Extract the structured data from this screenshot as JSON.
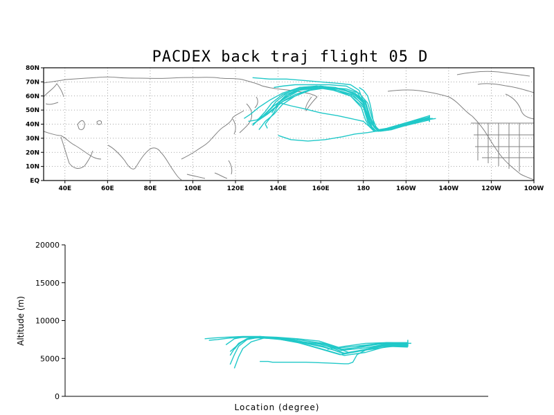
{
  "chart_data": [
    {
      "type": "scatter",
      "subtype": "trajectory-map",
      "title": "PACDEX back traj flight 05 D",
      "x_ticks": [
        "40E",
        "60E",
        "80E",
        "100E",
        "120E",
        "140E",
        "160E",
        "180",
        "160W",
        "140W",
        "120W",
        "100W"
      ],
      "y_ticks": [
        "EQ",
        "10N",
        "20N",
        "30N",
        "40N",
        "50N",
        "60N",
        "70N",
        "80N"
      ],
      "xlim": [
        30,
        260
      ],
      "ylim": [
        0,
        80
      ],
      "grid": true,
      "colors": {
        "trajectory": "#20c8c8",
        "coast": "#808080"
      },
      "series": [
        {
          "lon": [
            211,
            200,
            190,
            186,
            184,
            182,
            180,
            174,
            168,
            160,
            152,
            146,
            141,
            138,
            136,
            134,
            135
          ],
          "lat": [
            44,
            40,
            36,
            35,
            37,
            42,
            52,
            60,
            64,
            66,
            65,
            62,
            56,
            48,
            44,
            40,
            37
          ]
        },
        {
          "lon": [
            211,
            202,
            192,
            187,
            185,
            183,
            181,
            176,
            170,
            162,
            154,
            148,
            142,
            138,
            134,
            132,
            131
          ],
          "lat": [
            45,
            41,
            37,
            35,
            38,
            44,
            54,
            61,
            65,
            66,
            64,
            60,
            54,
            47,
            42,
            38,
            36
          ]
        },
        {
          "lon": [
            211,
            200,
            191,
            186,
            184,
            182,
            180,
            175,
            168,
            160,
            150,
            143,
            137,
            133,
            130,
            128
          ],
          "lat": [
            43,
            39,
            36,
            35,
            37,
            43,
            53,
            61,
            64,
            66,
            64,
            58,
            52,
            46,
            42,
            39
          ]
        },
        {
          "lon": [
            211,
            201,
            192,
            187,
            185,
            183,
            181,
            176,
            169,
            160,
            151,
            144,
            138,
            134,
            130,
            126
          ],
          "lat": [
            44,
            40,
            36,
            35,
            38,
            44,
            55,
            62,
            65,
            67,
            65,
            60,
            53,
            47,
            43,
            42
          ]
        },
        {
          "lon": [
            211,
            200,
            191,
            187,
            185,
            183,
            181,
            176,
            170,
            162,
            154,
            148,
            143,
            139,
            135,
            131,
            128
          ],
          "lat": [
            46,
            41,
            37,
            36,
            39,
            46,
            56,
            62,
            65,
            66,
            64,
            61,
            57,
            52,
            47,
            43,
            40
          ]
        },
        {
          "lon": [
            211,
            201,
            193,
            188,
            186,
            184,
            182,
            178,
            172,
            164,
            155,
            148,
            142,
            137,
            133
          ],
          "lat": [
            44,
            40,
            36,
            35,
            38,
            45,
            55,
            62,
            65,
            66,
            64,
            60,
            56,
            50,
            45
          ]
        },
        {
          "lon": [
            211,
            200,
            191,
            186,
            184,
            182,
            180,
            176,
            168,
            160,
            150,
            142,
            136,
            131,
            127,
            124
          ],
          "lat": [
            45,
            40,
            36,
            35,
            38,
            45,
            56,
            62,
            65,
            67,
            66,
            62,
            57,
            52,
            47,
            44
          ]
        },
        {
          "lon": [
            211,
            202,
            193,
            187,
            185,
            183,
            180,
            174,
            166,
            158,
            150,
            144,
            139,
            136
          ],
          "lat": [
            44,
            40,
            36,
            35,
            38,
            44,
            54,
            61,
            65,
            67,
            66,
            62,
            56,
            50
          ]
        },
        {
          "lon": [
            211,
            201,
            192,
            187,
            185,
            182,
            180,
            175,
            167,
            158,
            149,
            142,
            137,
            134,
            131
          ],
          "lat": [
            45,
            40,
            36,
            35,
            38,
            44,
            55,
            62,
            66,
            67,
            65,
            61,
            55,
            49,
            44
          ]
        },
        {
          "lon": [
            211,
            200,
            190,
            185,
            183,
            181,
            179,
            174,
            166,
            158,
            150,
            144,
            140,
            137
          ],
          "lat": [
            44,
            40,
            36,
            35,
            38,
            43,
            52,
            60,
            64,
            66,
            65,
            61,
            55,
            48
          ]
        },
        {
          "lon": [
            211,
            200,
            191,
            186,
            184,
            182,
            180,
            178,
            174,
            168,
            160,
            152,
            144,
            136,
            128
          ],
          "lat": [
            44,
            40,
            36,
            35,
            38,
            46,
            56,
            64,
            68,
            69,
            70,
            71,
            72,
            72,
            73
          ]
        },
        {
          "lon": [
            211,
            200,
            191,
            186,
            184,
            182,
            180,
            177,
            172,
            164,
            156,
            148,
            142,
            138
          ],
          "lat": [
            45,
            41,
            37,
            35,
            38,
            45,
            55,
            63,
            67,
            68,
            68,
            68,
            67,
            66
          ]
        },
        {
          "lon": [
            211,
            201,
            192,
            187,
            185,
            184,
            183,
            182,
            180,
            178
          ],
          "lat": [
            44,
            40,
            36,
            36,
            39,
            48,
            55,
            60,
            64,
            66
          ]
        },
        {
          "lon": [
            211,
            200,
            190,
            186,
            185,
            183,
            180,
            174,
            168,
            160,
            152,
            146,
            141
          ],
          "lat": [
            44,
            40,
            36,
            35,
            36,
            38,
            42,
            44,
            46,
            48,
            51,
            53,
            55
          ]
        },
        {
          "lon": [
            209,
            200,
            192,
            186,
            182,
            176,
            170,
            162,
            154,
            146,
            140
          ],
          "lat": [
            44,
            41,
            37,
            35,
            34,
            33,
            31,
            29,
            28,
            29,
            32
          ]
        },
        {
          "lon": [
            214,
            200,
            192,
            186,
            184,
            183,
            182
          ],
          "lat": [
            44,
            41,
            37,
            35,
            37,
            42,
            48
          ]
        }
      ]
    },
    {
      "type": "line",
      "xlabel": "Location (degree)",
      "ylabel": "Altitude (m)",
      "ylim": [
        0,
        20000
      ],
      "y_ticks": [
        "0",
        "5000",
        "10000",
        "15000",
        "20000"
      ],
      "x_ticks": [],
      "colors": {
        "trajectory": "#20c8c8"
      },
      "series": [
        {
          "x": [
            0.81,
            0.76,
            0.7,
            0.65,
            0.6,
            0.55,
            0.5,
            0.46,
            0.42,
            0.4,
            0.39,
            0.38
          ],
          "y": [
            7000,
            7000,
            6600,
            6000,
            7000,
            7200,
            7600,
            7700,
            7800,
            7600,
            7200,
            6800
          ]
        },
        {
          "x": [
            0.81,
            0.76,
            0.71,
            0.66,
            0.61,
            0.56,
            0.51,
            0.47,
            0.43,
            0.41,
            0.4,
            0.39
          ],
          "y": [
            6800,
            6900,
            6200,
            5600,
            6600,
            7200,
            7700,
            7800,
            7600,
            7000,
            6300,
            5400
          ]
        },
        {
          "x": [
            0.81,
            0.76,
            0.7,
            0.65,
            0.6,
            0.55,
            0.5,
            0.46,
            0.43,
            0.41,
            0.4,
            0.39
          ],
          "y": [
            6600,
            6700,
            6000,
            5500,
            6300,
            7100,
            7600,
            7800,
            7500,
            6600,
            5500,
            4200
          ]
        },
        {
          "x": [
            0.81,
            0.76,
            0.71,
            0.66,
            0.61,
            0.56,
            0.51,
            0.47,
            0.44,
            0.42,
            0.41,
            0.4
          ],
          "y": [
            6500,
            6600,
            5800,
            5400,
            6200,
            7000,
            7500,
            7700,
            7200,
            6300,
            5200,
            3700
          ]
        },
        {
          "x": [
            0.81,
            0.75,
            0.7,
            0.65,
            0.6,
            0.55,
            0.5,
            0.46,
            0.43,
            0.41,
            0.4
          ],
          "y": [
            6900,
            7000,
            6500,
            6200,
            6900,
            7300,
            7700,
            7900,
            7600,
            6900,
            6200
          ]
        },
        {
          "x": [
            0.81,
            0.76,
            0.71,
            0.66,
            0.61,
            0.56,
            0.51,
            0.47,
            0.44,
            0.42,
            0.4,
            0.39
          ],
          "y": [
            6700,
            6800,
            6100,
            5700,
            6500,
            7100,
            7600,
            7800,
            7700,
            7300,
            6400,
            5900
          ]
        },
        {
          "x": [
            0.81,
            0.76,
            0.7,
            0.65,
            0.6,
            0.55,
            0.5,
            0.46,
            0.42,
            0.38,
            0.35,
            0.33
          ],
          "y": [
            7100,
            7100,
            6700,
            6400,
            7300,
            7600,
            7800,
            7900,
            7900,
            7800,
            7700,
            7600
          ]
        },
        {
          "x": [
            0.81,
            0.76,
            0.71,
            0.66,
            0.61,
            0.56,
            0.51,
            0.47,
            0.43,
            0.39,
            0.36,
            0.34
          ],
          "y": [
            6900,
            6900,
            6400,
            6100,
            7000,
            7400,
            7700,
            7800,
            7800,
            7700,
            7500,
            7400
          ]
        },
        {
          "x": [
            0.81,
            0.75,
            0.71,
            0.67,
            0.63,
            0.6
          ],
          "y": [
            7000,
            6800,
            6200,
            5800,
            6600,
            7100
          ]
        },
        {
          "x": [
            0.81,
            0.76,
            0.71,
            0.69,
            0.68,
            0.67,
            0.66,
            0.62,
            0.57,
            0.52,
            0.49,
            0.48,
            0.46
          ],
          "y": [
            6800,
            6500,
            6100,
            5500,
            4500,
            4300,
            4300,
            4400,
            4500,
            4500,
            4500,
            4600,
            4600
          ]
        },
        {
          "x": [
            0.81,
            0.76,
            0.71,
            0.66,
            0.62
          ],
          "y": [
            7000,
            7100,
            7000,
            6600,
            6200
          ]
        }
      ]
    }
  ]
}
